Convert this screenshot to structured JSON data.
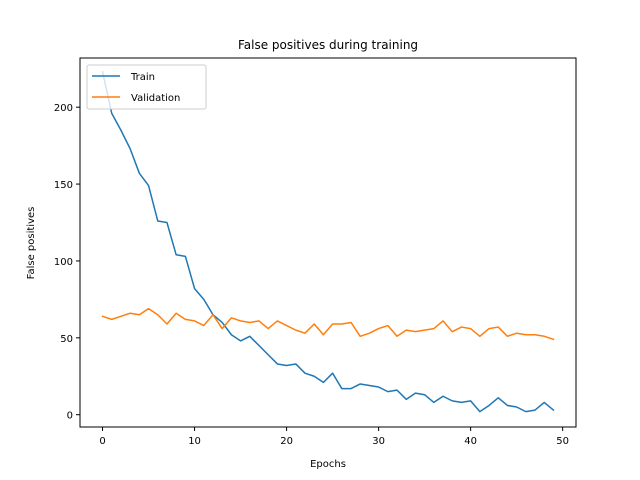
{
  "chart_data": {
    "type": "line",
    "title": "False positives during training",
    "xlabel": "Epochs",
    "ylabel": "False positives",
    "xlim": [
      -2.45,
      51.45
    ],
    "ylim": [
      -8,
      232
    ],
    "xticks": [
      0,
      10,
      20,
      30,
      40,
      50
    ],
    "yticks": [
      0,
      50,
      100,
      150,
      200
    ],
    "grid": false,
    "legend_position": "top-left",
    "x": [
      0,
      1,
      2,
      3,
      4,
      5,
      6,
      7,
      8,
      9,
      10,
      11,
      12,
      13,
      14,
      15,
      16,
      17,
      18,
      19,
      20,
      21,
      22,
      23,
      24,
      25,
      26,
      27,
      28,
      29,
      30,
      31,
      32,
      33,
      34,
      35,
      36,
      37,
      38,
      39,
      40,
      41,
      42,
      43,
      44,
      45,
      46,
      47,
      48,
      49
    ],
    "series": [
      {
        "name": "Train",
        "color": "#1f77b4",
        "values": [
          223,
          196,
          185,
          173,
          157,
          149,
          126,
          125,
          104,
          103,
          82,
          75,
          65,
          60,
          52,
          48,
          51,
          45,
          39,
          33,
          32,
          33,
          27,
          25,
          21,
          27,
          17,
          17,
          20,
          19,
          18,
          15,
          16,
          10,
          14,
          13,
          8,
          12,
          9,
          8,
          9,
          2,
          6,
          11,
          6,
          5,
          2,
          3,
          8,
          3
        ]
      },
      {
        "name": "Validation",
        "color": "#ff7f0e",
        "values": [
          64,
          62,
          64,
          66,
          65,
          69,
          65,
          59,
          66,
          62,
          61,
          58,
          65,
          56,
          63,
          61,
          60,
          61,
          56,
          61,
          58,
          55,
          53,
          59,
          52,
          59,
          59,
          60,
          51,
          53,
          56,
          58,
          51,
          55,
          54,
          55,
          56,
          61,
          54,
          57,
          56,
          51,
          56,
          57,
          51,
          53,
          52,
          52,
          51,
          49
        ]
      }
    ]
  }
}
